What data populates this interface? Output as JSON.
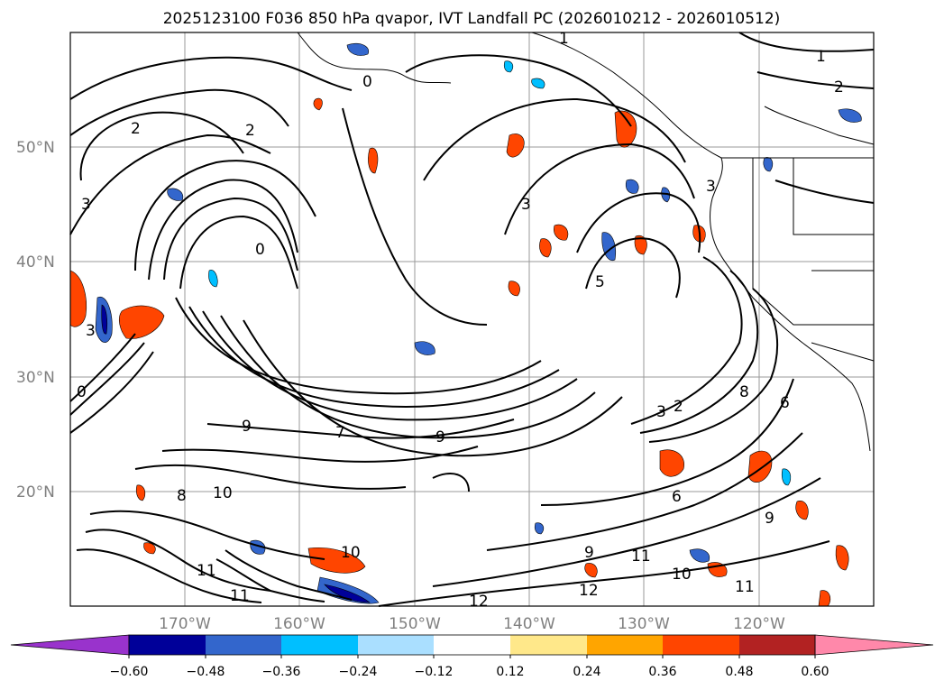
{
  "title": "2025123100 F036 850 hPa qvapor, IVT Landfall PC (2026010212 - 2026010512)",
  "lat_labels": [
    "50°N",
    "40°N",
    "30°N",
    "20°N"
  ],
  "lon_labels": [
    "170°W",
    "160°W",
    "150°W",
    "140°W",
    "130°W",
    "120°W"
  ],
  "colorbar": {
    "colors": [
      "#9933cc",
      "#000099",
      "#3366cc",
      "#00bfff",
      "#aadfff",
      "#ffffff",
      "#ffe88a",
      "#ffa500",
      "#ff4500",
      "#b22222",
      "#ff88aa"
    ],
    "tick_labels": [
      "−0.60",
      "−0.48",
      "−0.36",
      "−0.24",
      "−0.12",
      "0.12",
      "0.24",
      "0.36",
      "0.48",
      "0.60"
    ]
  },
  "contour_labels": [
    "0",
    "0",
    "0",
    "1",
    "1",
    "2",
    "2",
    "2",
    "2",
    "3",
    "3",
    "3",
    "3",
    "3",
    "5",
    "6",
    "6",
    "7",
    "8",
    "8",
    "9",
    "9",
    "9",
    "9",
    "10",
    "10",
    "10",
    "11",
    "11",
    "11",
    "11",
    "12",
    "12"
  ]
}
